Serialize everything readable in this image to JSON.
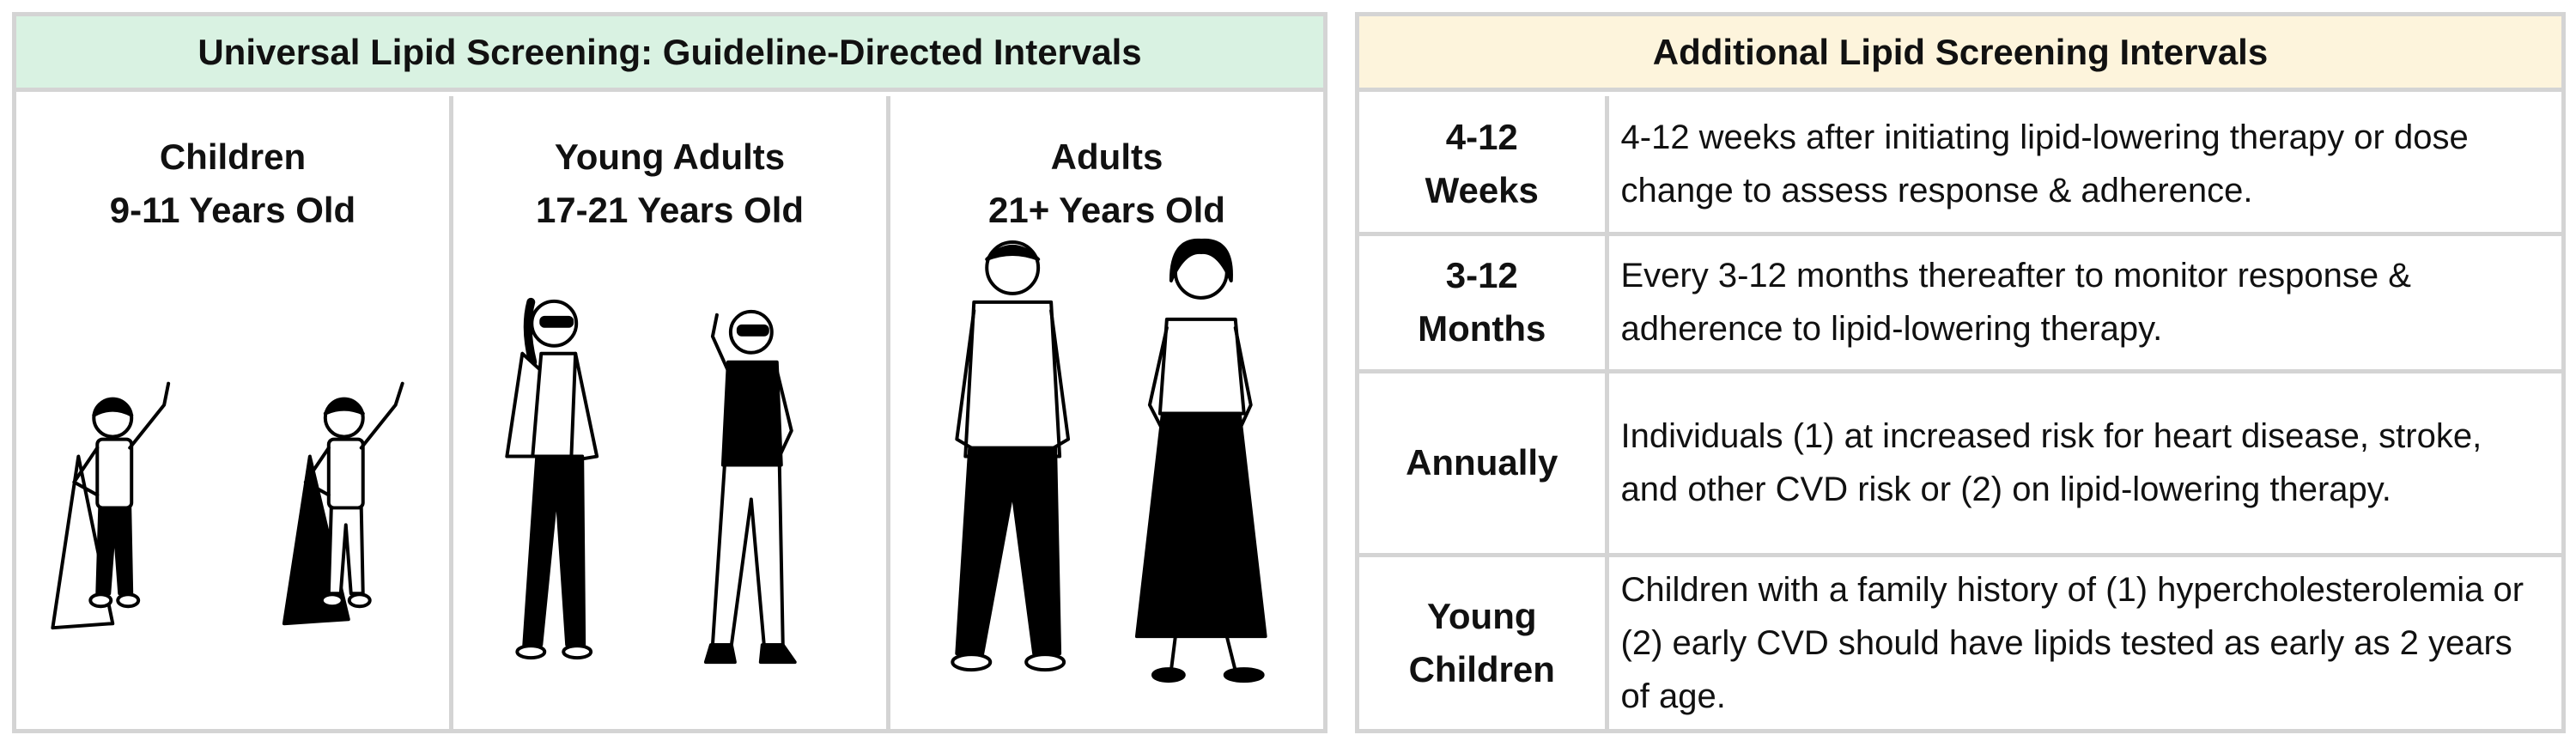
{
  "left": {
    "title": "Universal Lipid Screening: Guideline-Directed Intervals",
    "columns": [
      {
        "line1": "Children",
        "line2": "9-11 Years Old"
      },
      {
        "line1": "Young Adults",
        "line2": "17-21 Years Old"
      },
      {
        "line1": "Adults",
        "line2": "21+ Years Old"
      }
    ]
  },
  "right": {
    "title": "Additional Lipid Screening Intervals",
    "rows": [
      {
        "label1": "4-12",
        "label2": "Weeks",
        "text": "4-12 weeks after initiating lipid-lowering therapy or dose change to assess response & adherence."
      },
      {
        "label1": "3-12",
        "label2": "Months",
        "text": "Every 3-12 months thereafter to monitor response & adherence to lipid-lowering therapy."
      },
      {
        "label1": "Annually",
        "label2": "",
        "text": "Individuals (1) at increased risk for heart disease, stroke, and other CVD risk or (2) on lipid-lowering therapy."
      },
      {
        "label1": "Young",
        "label2": "Children",
        "text": "Children with a family history of (1) hypercholesterolemia or (2) early CVD should have lipids tested as early as 2 years of age."
      }
    ]
  },
  "colors": {
    "left_header_bg": "#d9f2e2",
    "right_header_bg": "#fdf4dc",
    "border": "#d4d4d4"
  }
}
